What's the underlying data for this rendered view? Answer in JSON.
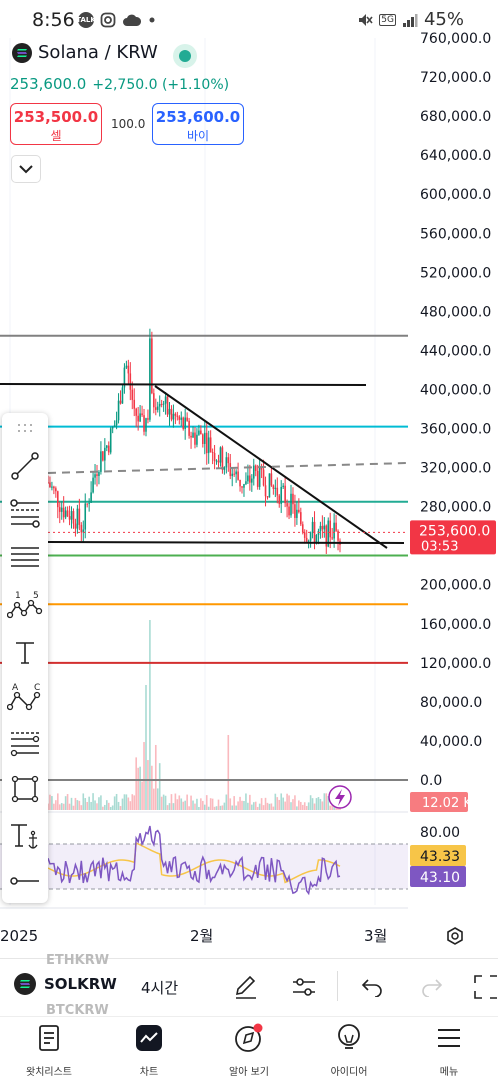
{
  "status_bar": {
    "time": "8:56",
    "battery": "45%",
    "network": "5G",
    "icons": [
      "talk-icon",
      "instagram-icon",
      "cloud-icon",
      "dot-icon",
      "mute-icon",
      "signal-icon"
    ]
  },
  "header": {
    "symbol": "Solana / KRW",
    "price": "253,600.0",
    "change": "+2,750.0 (+1.10%)",
    "sell_price": "253,500.0",
    "sell_label": "셀",
    "spread": "100.0",
    "buy_price": "253,600.0",
    "buy_label": "바이"
  },
  "price_axis": {
    "labels": [
      "760,000.0",
      "720,000.0",
      "680,000.0",
      "640,000.0",
      "600,000.0",
      "560,000.0",
      "520,000.0",
      "480,000.0",
      "440,000.0",
      "400,000.0",
      "360,000.0",
      "320,000.0",
      "280,000.0",
      "240,000.0",
      "200,000.0",
      "160,000.0",
      "120,000.0",
      "80,000.0",
      "40,000.0",
      "0.0"
    ],
    "current_price_tag": "253,600.0",
    "countdown": "03:53",
    "volume_tag": "12.02 K"
  },
  "rsi_axis": {
    "top_label": "80.00",
    "value_yellow": "43.33",
    "value_purple": "43.10"
  },
  "time_axis": {
    "labels": [
      "2025",
      "2월",
      "3월"
    ]
  },
  "colors": {
    "up": "#089981",
    "down": "#f23645",
    "accent": "#2962ff",
    "rsi_line": "#7e57c2",
    "rsi_ma": "#f7c548"
  },
  "chart_data": {
    "type": "candlestick",
    "symbol": "SOLKRW",
    "interval": "4시간",
    "ylim": [
      0,
      760000
    ],
    "x_ticks": [
      "2025",
      "2월",
      "3월"
    ],
    "price_levels": [
      {
        "price": 455000,
        "color": "#808080"
      },
      {
        "price": 362000,
        "color": "#00bcd4"
      },
      {
        "price": 285000,
        "color": "#22ab94"
      },
      {
        "price": 230000,
        "color": "#4caf50"
      },
      {
        "price": 180000,
        "color": "#ff9800"
      },
      {
        "price": 120000,
        "color": "#d32f2f"
      },
      {
        "price": 0,
        "color": "#808080"
      }
    ],
    "close_path": [
      305000,
      290000,
      275000,
      272000,
      258000,
      300000,
      330000,
      345000,
      370000,
      430000,
      380000,
      360000,
      385000,
      395000,
      375000,
      370000,
      360000,
      352000,
      355000,
      340000,
      330000,
      320000,
      310000,
      300000,
      315000,
      305000,
      300000,
      295000,
      285000,
      270000,
      255000,
      252000,
      250000,
      255000,
      253600
    ],
    "rsi": {
      "upper": 80,
      "lower": 20,
      "value": 43.1,
      "ma": 43.33
    },
    "volume_last": "12.02 K"
  },
  "toolbar": {
    "symbol": "SOLKRW",
    "interval": "4시간",
    "ghost_above": "ETHKRW",
    "ghost_below": "BTCKRW"
  },
  "drawing_tools": [
    "trend-line",
    "fib-retracement",
    "parallel-channel",
    "xabcd-pattern",
    "text",
    "abcd-pattern",
    "price-range",
    "rectangle",
    "anchored-text",
    "horizontal-ray"
  ],
  "tool_labels": {
    "pattern_left": "1",
    "pattern_right": "5",
    "abcd_a": "A",
    "abcd_c": "C"
  },
  "nav": [
    {
      "label": "왓치리스트",
      "icon": "list-icon"
    },
    {
      "label": "차트",
      "icon": "chart-icon"
    },
    {
      "label": "알아 보기",
      "icon": "compass-icon"
    },
    {
      "label": "아이디어",
      "icon": "lightbulb-icon"
    },
    {
      "label": "메뉴",
      "icon": "hamburger-icon"
    }
  ]
}
